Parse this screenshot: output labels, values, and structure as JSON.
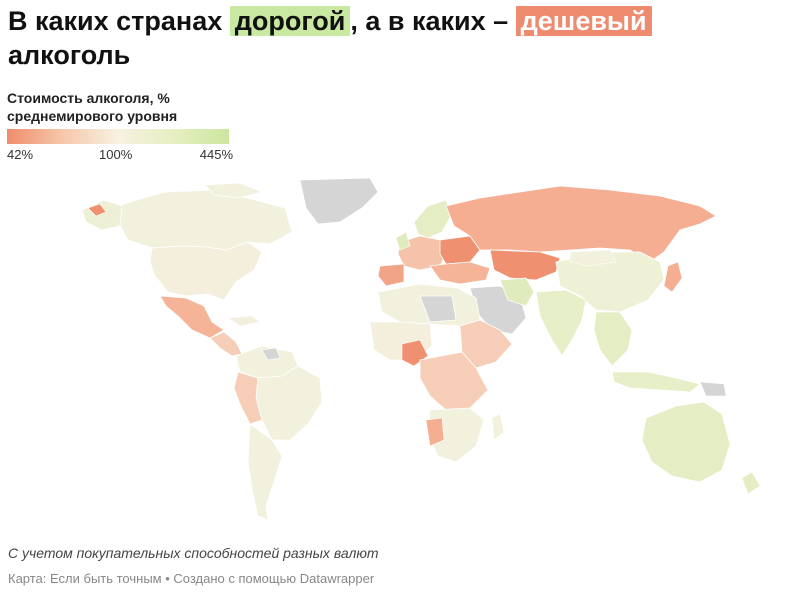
{
  "title": {
    "part1": "В каких странах ",
    "highlight_expensive": "дорогой",
    "part2": ", а в каких – ",
    "highlight_cheap": "дешевый",
    "part3": " алкоголь"
  },
  "legend": {
    "title": "Стоимость алкоголя, % среднемирового уровня",
    "min_label": "42%",
    "mid_label": "100%",
    "max_label": "445%",
    "colors": [
      "#ee8d6c",
      "#f6c7aa",
      "#f7f1e2",
      "#e6efc2",
      "#cde6a0"
    ],
    "no_data_color": "#d9d9d9"
  },
  "map": {
    "projection": "world",
    "colors": {
      "cheap": "#ef9070",
      "cheap_light": "#f5ae92",
      "mid_cheap": "#f6cdb6",
      "near_avg": "#f4efdd",
      "mid_exp": "#e4edc4",
      "expensive": "#d2e7ab",
      "no_data": "#d5d5d5"
    }
  },
  "footnote": "С учетом покупательных способностей разных валют",
  "source": "Карта: Если быть точным • Создано с помощью Datawrapper"
}
